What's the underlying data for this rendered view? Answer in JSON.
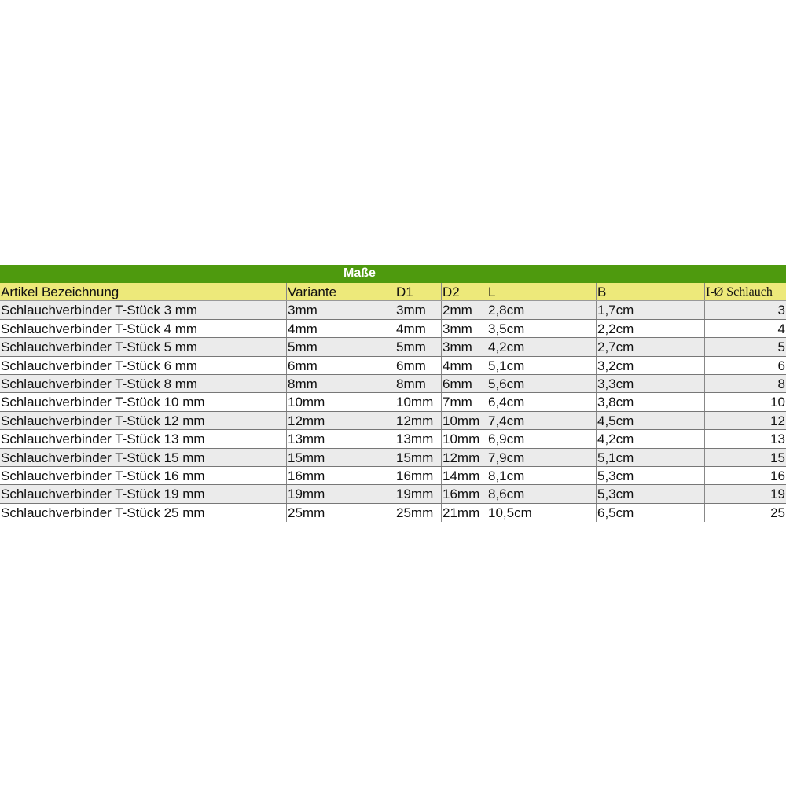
{
  "title": "Maße",
  "colors": {
    "title_bg": "#4e9a0e",
    "header_bg": "#ede97a",
    "alt_row_bg": "#ebebeb"
  },
  "headers": [
    "Artikel Bezeichnung",
    "Variante",
    "D1",
    "D2",
    "L",
    "B",
    "I-Ø Schlauch"
  ],
  "rows": [
    [
      "Schlauchverbinder T-Stück 3 mm",
      "3mm",
      "3mm",
      "2mm",
      "2,8cm",
      "1,7cm",
      "3"
    ],
    [
      "Schlauchverbinder T-Stück 4 mm",
      "4mm",
      "4mm",
      "3mm",
      "3,5cm",
      "2,2cm",
      "4"
    ],
    [
      "Schlauchverbinder T-Stück 5 mm",
      "5mm",
      "5mm",
      "3mm",
      "4,2cm",
      "2,7cm",
      "5"
    ],
    [
      "Schlauchverbinder T-Stück 6 mm",
      "6mm",
      "6mm",
      "4mm",
      "5,1cm",
      "3,2cm",
      "6"
    ],
    [
      "Schlauchverbinder T-Stück 8 mm",
      "8mm",
      "8mm",
      "6mm",
      "5,6cm",
      "3,3cm",
      "8"
    ],
    [
      "Schlauchverbinder T-Stück 10 mm",
      "10mm",
      "10mm",
      "7mm",
      "6,4cm",
      "3,8cm",
      "10"
    ],
    [
      "Schlauchverbinder T-Stück 12 mm",
      "12mm",
      "12mm",
      "10mm",
      "7,4cm",
      "4,5cm",
      "12"
    ],
    [
      "Schlauchverbinder T-Stück 13 mm",
      "13mm",
      "13mm",
      "10mm",
      "6,9cm",
      "4,2cm",
      "13"
    ],
    [
      "Schlauchverbinder T-Stück 15 mm",
      "15mm",
      "15mm",
      "12mm",
      "7,9cm",
      "5,1cm",
      "15"
    ],
    [
      "Schlauchverbinder T-Stück 16 mm",
      "16mm",
      "16mm",
      "14mm",
      "8,1cm",
      "5,3cm",
      "16"
    ],
    [
      "Schlauchverbinder T-Stück 19 mm",
      "19mm",
      "19mm",
      "16mm",
      "8,6cm",
      "5,3cm",
      "19"
    ],
    [
      "Schlauchverbinder T-Stück 25 mm",
      "25mm",
      "25mm",
      "21mm",
      "10,5cm",
      "6,5cm",
      "25"
    ]
  ]
}
